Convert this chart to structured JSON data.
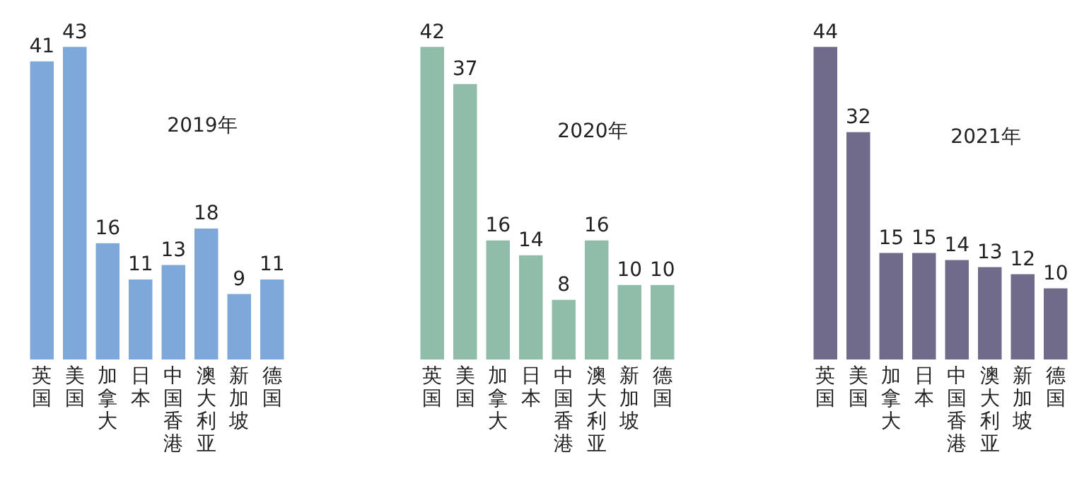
{
  "chart_data": [
    {
      "type": "bar",
      "title": "2019年",
      "categories": [
        "英国",
        "美国",
        "加拿大",
        "日本",
        "中国香港",
        "澳大利亚",
        "新加坡",
        "德国"
      ],
      "values": [
        41,
        43,
        16,
        11,
        13,
        18,
        9,
        11
      ],
      "color": "#7ea8da",
      "data_labels": true
    },
    {
      "type": "bar",
      "title": "2020年",
      "categories": [
        "英国",
        "美国",
        "加拿大",
        "日本",
        "中国香港",
        "澳大利亚",
        "新加坡",
        "德国"
      ],
      "values": [
        42,
        37,
        16,
        14,
        8,
        16,
        10,
        10
      ],
      "color": "#90bcaa",
      "data_labels": true
    },
    {
      "type": "bar",
      "title": "2021年",
      "categories": [
        "英国",
        "美国",
        "加拿大",
        "日本",
        "中国香港",
        "澳大利亚",
        "新加坡",
        "德国"
      ],
      "values": [
        44,
        32,
        15,
        15,
        14,
        13,
        12,
        10
      ],
      "color": "#706b8b",
      "data_labels": true
    }
  ]
}
